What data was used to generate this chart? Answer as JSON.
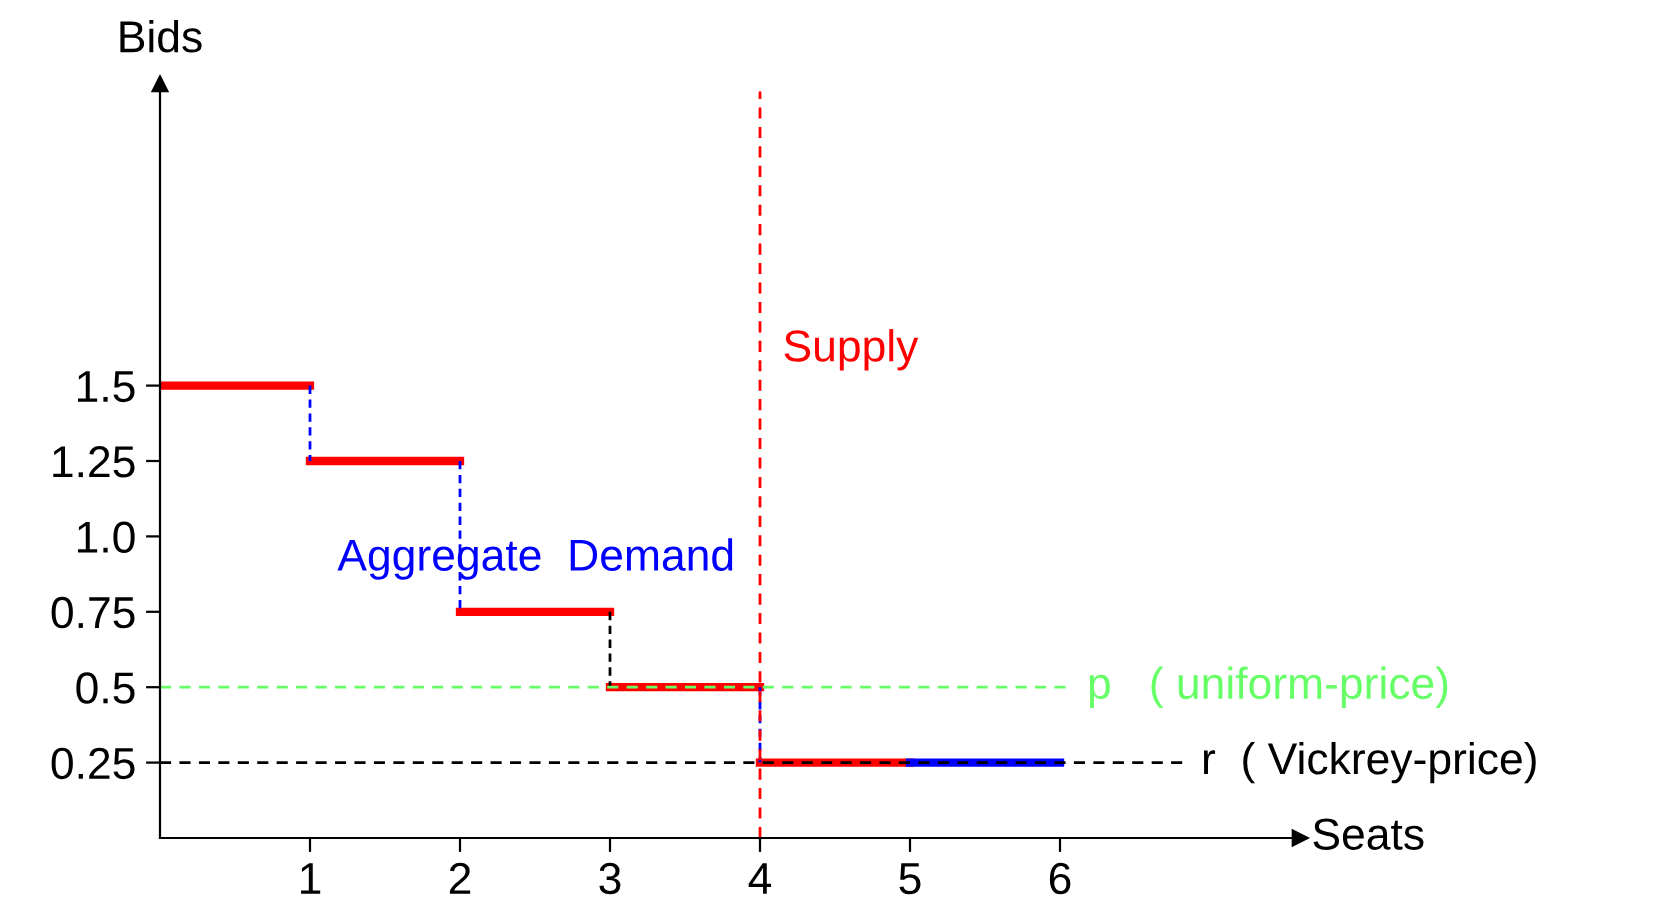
{
  "chart_data": {
    "type": "line",
    "xlabel": "Seats",
    "ylabel": "Bids",
    "series": [
      {
        "color": "#ff0000",
        "x": [
          0,
          1
        ],
        "values": [
          1.5,
          1.5
        ]
      },
      {
        "color": "#ff0000",
        "x": [
          1,
          2
        ],
        "values": [
          1.25,
          1.25
        ]
      },
      {
        "color": "#ff0000",
        "x": [
          2,
          3
        ],
        "values": [
          0.75,
          0.75
        ]
      },
      {
        "color": "#ff0000",
        "x": [
          3,
          4
        ],
        "values": [
          0.5,
          0.5
        ]
      },
      {
        "color": "#ff0000",
        "x": [
          4,
          5
        ],
        "values": [
          0.25,
          0.25
        ]
      },
      {
        "color": "#0000ff",
        "x": [
          5,
          6
        ],
        "values": [
          0.25,
          0.25
        ]
      },
      {
        "color": "#0000ff",
        "x": [
          1,
          1
        ],
        "values": [
          1.5,
          1.25
        ],
        "line_style": "dashed"
      },
      {
        "color": "#0000ff",
        "x": [
          2,
          2
        ],
        "values": [
          1.25,
          0.75
        ],
        "line_style": "dashed"
      },
      {
        "color": "#000000",
        "x": [
          3,
          3
        ],
        "values": [
          0.75,
          0.5
        ],
        "line_style": "dashed"
      },
      {
        "color": "#0000ff",
        "x": [
          4,
          4
        ],
        "values": [
          0.5,
          0.25
        ],
        "line_style": "dashed"
      }
    ],
    "xlim": [
      0,
      7.6
    ],
    "ylim": [
      0,
      2.5
    ],
    "xticks": [
      1,
      2,
      3,
      4,
      5,
      6
    ],
    "yticks": [
      0.25,
      0.5,
      0.75,
      {
        "value": 1,
        "label": "1.0"
      },
      1.25,
      1.5
    ],
    "ref_lines": [
      {
        "axis": "y",
        "value": 0.5,
        "label": "p   ( uniform-price)",
        "color": "#66ff66",
        "line_style": "dashed"
      },
      {
        "axis": "y",
        "value": 0.25,
        "label": "r  ( Vickrey-price)",
        "color": "#000000",
        "line_style": "dashed"
      },
      {
        "axis": "x",
        "value": 4,
        "label": "Supply",
        "color": "#ff0000",
        "line_style": "dashed"
      }
    ],
    "annotations": [
      "Aggregate  Demand"
    ],
    "grid": false,
    "legend": false
  }
}
